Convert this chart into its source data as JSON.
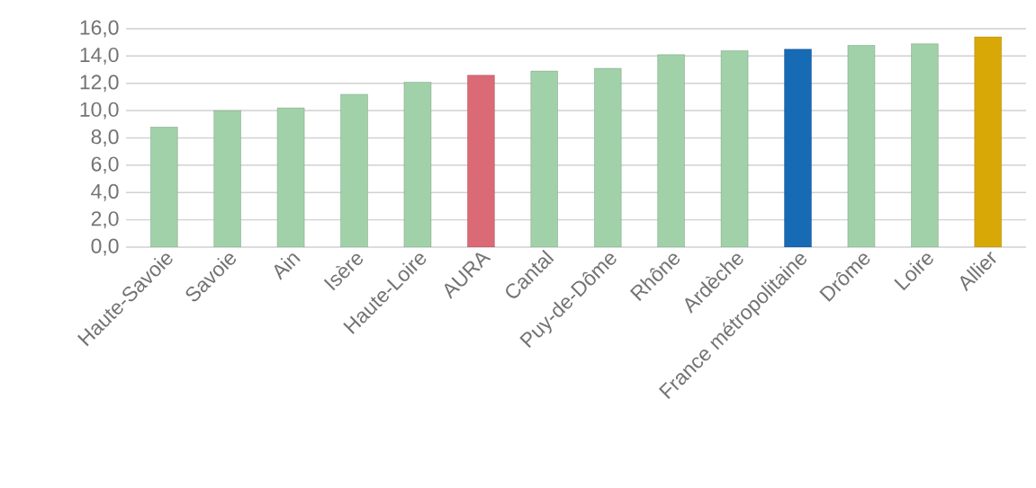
{
  "chart_data": {
    "type": "bar",
    "categories": [
      "Haute-Savoie",
      "Savoie",
      "Ain",
      "Isère",
      "Haute-Loire",
      "AURA",
      "Cantal",
      "Puy-de-Dôme",
      "Rhône",
      "Ardèche",
      "France métropolitaine",
      "Drôme",
      "Loire",
      "Allier"
    ],
    "values": [
      8.8,
      10.0,
      10.2,
      11.2,
      12.1,
      12.6,
      12.9,
      13.1,
      14.1,
      14.4,
      14.5,
      14.8,
      14.9,
      15.4
    ],
    "colors": [
      "#a1d1a9",
      "#a1d1a9",
      "#a1d1a9",
      "#a1d1a9",
      "#a1d1a9",
      "#d96a76",
      "#a1d1a9",
      "#a1d1a9",
      "#a1d1a9",
      "#a1d1a9",
      "#176ab4",
      "#a1d1a9",
      "#a1d1a9",
      "#d8a906"
    ],
    "ylim": [
      0,
      16
    ],
    "yticks": [
      {
        "value": 0,
        "label": "0,0"
      },
      {
        "value": 2,
        "label": "2,0"
      },
      {
        "value": 4,
        "label": "4,0"
      },
      {
        "value": 6,
        "label": "6,0"
      },
      {
        "value": 8,
        "label": "8,0"
      },
      {
        "value": 10,
        "label": "10,0"
      },
      {
        "value": 12,
        "label": "12,0"
      },
      {
        "value": 14,
        "label": "14,0"
      },
      {
        "value": 16,
        "label": "16,0"
      }
    ],
    "grid": "y"
  }
}
